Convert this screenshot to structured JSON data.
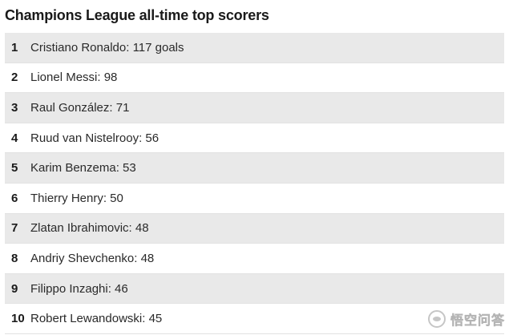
{
  "title": "Champions League all-time top scorers",
  "rows": [
    {
      "rank": "1",
      "text": "Cristiano Ronaldo: 117 goals"
    },
    {
      "rank": "2",
      "text": "Lionel Messi: 98"
    },
    {
      "rank": "3",
      "text": "Raul González: 71"
    },
    {
      "rank": "4",
      "text": "Ruud van Nistelrooy: 56"
    },
    {
      "rank": "5",
      "text": "Karim Benzema: 53"
    },
    {
      "rank": "6",
      "text": "Thierry Henry: 50"
    },
    {
      "rank": "7",
      "text": "Zlatan Ibrahimovic: 48"
    },
    {
      "rank": "8",
      "text": "Andriy Shevchenko: 48"
    },
    {
      "rank": "9",
      "text": "Filippo Inzaghi: 46"
    },
    {
      "rank": "10",
      "text": "Robert Lewandowski: 45"
    }
  ],
  "watermark": {
    "icon": "chat-bubble-icon",
    "text": "悟空问答"
  }
}
